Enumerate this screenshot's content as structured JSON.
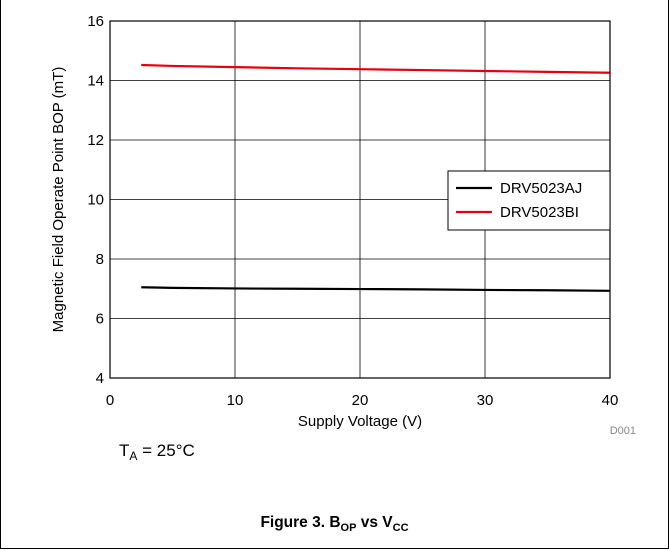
{
  "chart_data": {
    "type": "line",
    "xlabel": "Supply Voltage (V)",
    "ylabel": "Magnetic Field Operate Point BOP (mT)",
    "xlim": [
      0,
      40
    ],
    "ylim": [
      4,
      16
    ],
    "xticks": [
      0,
      10,
      20,
      30,
      40
    ],
    "yticks": [
      4,
      6,
      8,
      10,
      12,
      14,
      16
    ],
    "grid": true,
    "legend_position": "right",
    "series": [
      {
        "name": "DRV5023AJ",
        "color": "#000000",
        "x": [
          2.5,
          5,
          10,
          15,
          20,
          25,
          30,
          35,
          40
        ],
        "y": [
          7.05,
          7.03,
          7.01,
          7.0,
          6.99,
          6.98,
          6.96,
          6.95,
          6.93
        ]
      },
      {
        "name": "DRV5023BI",
        "color": "#e8000b",
        "x": [
          2.5,
          5,
          10,
          15,
          20,
          25,
          30,
          35,
          40
        ],
        "y": [
          14.52,
          14.49,
          14.45,
          14.41,
          14.38,
          14.35,
          14.32,
          14.29,
          14.26
        ]
      }
    ],
    "tag": "D001"
  },
  "note": {
    "main": "T",
    "sub": "A",
    "rest": " = 25°C"
  },
  "caption": {
    "prefix": "Figure 3. B",
    "sub1": "OP",
    "mid": " vs V",
    "sub2": "CC"
  }
}
